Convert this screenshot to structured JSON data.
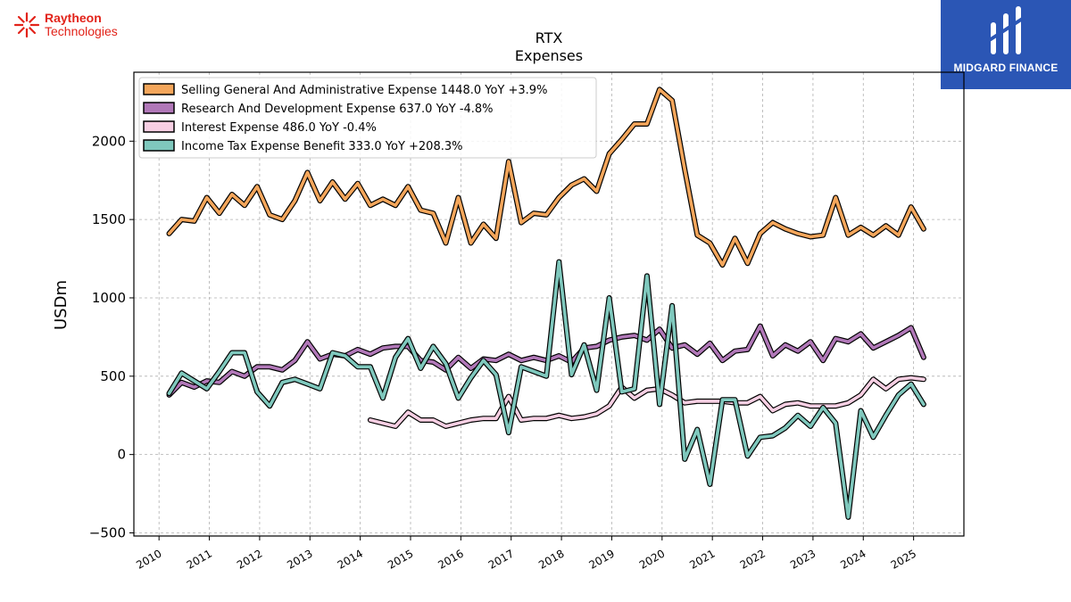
{
  "logos": {
    "left_line1": "Raytheon",
    "left_line2": "Technologies",
    "right_brand": "MIDGARD FINANCE"
  },
  "chart_data": {
    "type": "line",
    "title": "RTX",
    "subtitle": "Expenses",
    "xlabel": "",
    "ylabel": "USDm",
    "xlim": [
      2009.5,
      2026.0
    ],
    "ylim": [
      -520,
      2440
    ],
    "x_ticks": [
      "2010",
      "2011",
      "2012",
      "2013",
      "2014",
      "2015",
      "2016",
      "2017",
      "2018",
      "2019",
      "2020",
      "2021",
      "2022",
      "2023",
      "2024",
      "2025"
    ],
    "y_ticks": [
      -500,
      0,
      500,
      1000,
      1500,
      2000
    ],
    "y_tick_labels": [
      "−500",
      "0",
      "500",
      "1000",
      "1500",
      "2000"
    ],
    "grid": true,
    "legend_position": "top-left",
    "series": [
      {
        "name": "Selling General And Administrative Expense",
        "legend": "Selling General And Administrative Expense  1448.0 YoY +3.9%",
        "color": "#f4a65b",
        "x": [
          2010.2,
          2010.45,
          2010.7,
          2010.95,
          2011.2,
          2011.45,
          2011.7,
          2011.95,
          2012.2,
          2012.45,
          2012.7,
          2012.95,
          2013.2,
          2013.45,
          2013.7,
          2013.95,
          2014.2,
          2014.45,
          2014.7,
          2014.95,
          2015.2,
          2015.45,
          2015.7,
          2015.95,
          2016.2,
          2016.45,
          2016.7,
          2016.95,
          2017.2,
          2017.45,
          2017.7,
          2017.95,
          2018.2,
          2018.45,
          2018.7,
          2018.95,
          2019.2,
          2019.45,
          2019.7,
          2019.95,
          2020.2,
          2020.45,
          2020.7,
          2020.95,
          2021.2,
          2021.45,
          2021.7,
          2021.95,
          2022.2,
          2022.45,
          2022.7,
          2022.95,
          2023.2,
          2023.45,
          2023.7,
          2023.95,
          2024.2,
          2024.45,
          2024.7,
          2024.95,
          2025.2
        ],
        "values": [
          1410,
          1500,
          1490,
          1640,
          1540,
          1660,
          1590,
          1710,
          1530,
          1500,
          1620,
          1800,
          1620,
          1740,
          1630,
          1730,
          1590,
          1630,
          1590,
          1710,
          1560,
          1540,
          1350,
          1640,
          1350,
          1470,
          1380,
          1870,
          1480,
          1540,
          1530,
          1640,
          1720,
          1760,
          1680,
          1920,
          2010,
          2110,
          2110,
          2330,
          2260,
          1820,
          1400,
          1350,
          1210,
          1380,
          1220,
          1410,
          1480,
          1440,
          1410,
          1390,
          1400,
          1640,
          1400,
          1450,
          1400,
          1460,
          1400,
          1580,
          1440
        ]
      },
      {
        "name": "Research And Development Expense",
        "legend": "Research And Development Expense  637.0 YoY -4.8%",
        "color": "#b178b8",
        "x": [
          2010.2,
          2010.45,
          2010.7,
          2010.95,
          2011.2,
          2011.45,
          2011.7,
          2011.95,
          2012.2,
          2012.45,
          2012.7,
          2012.95,
          2013.2,
          2013.45,
          2013.7,
          2013.95,
          2014.2,
          2014.45,
          2014.7,
          2014.95,
          2015.2,
          2015.45,
          2015.7,
          2015.95,
          2016.2,
          2016.45,
          2016.7,
          2016.95,
          2017.2,
          2017.45,
          2017.7,
          2017.95,
          2018.2,
          2018.45,
          2018.7,
          2018.95,
          2019.2,
          2019.45,
          2019.7,
          2019.95,
          2020.2,
          2020.45,
          2020.7,
          2020.95,
          2021.2,
          2021.45,
          2021.7,
          2021.95,
          2022.2,
          2022.45,
          2022.7,
          2022.95,
          2023.2,
          2023.45,
          2023.7,
          2023.95,
          2024.2,
          2024.45,
          2024.7,
          2024.95,
          2025.2
        ],
        "values": [
          380,
          460,
          430,
          470,
          460,
          530,
          500,
          560,
          560,
          540,
          600,
          720,
          610,
          640,
          630,
          670,
          640,
          680,
          690,
          690,
          600,
          590,
          540,
          620,
          550,
          610,
          600,
          640,
          600,
          620,
          600,
          630,
          590,
          680,
          690,
          730,
          750,
          760,
          730,
          800,
          680,
          700,
          640,
          710,
          600,
          660,
          670,
          820,
          630,
          700,
          660,
          720,
          600,
          740,
          720,
          770,
          680,
          720,
          760,
          810,
          620
        ]
      },
      {
        "name": "Interest Expense",
        "legend": "Interest Expense  486.0 YoY -0.4%",
        "color": "#f7cfe3",
        "x": [
          2014.2,
          2014.45,
          2014.7,
          2014.95,
          2015.2,
          2015.45,
          2015.7,
          2015.95,
          2016.2,
          2016.45,
          2016.7,
          2016.95,
          2017.2,
          2017.45,
          2017.7,
          2017.95,
          2018.2,
          2018.45,
          2018.7,
          2018.95,
          2019.2,
          2019.45,
          2019.7,
          2019.95,
          2020.2,
          2020.45,
          2020.7,
          2020.95,
          2021.2,
          2021.45,
          2021.7,
          2021.95,
          2022.2,
          2022.45,
          2022.7,
          2022.95,
          2023.2,
          2023.45,
          2023.7,
          2023.95,
          2024.2,
          2024.45,
          2024.7,
          2024.95,
          2025.2
        ],
        "values": [
          220,
          200,
          180,
          270,
          220,
          220,
          180,
          200,
          220,
          230,
          230,
          370,
          220,
          230,
          230,
          250,
          230,
          240,
          260,
          310,
          430,
          360,
          410,
          420,
          380,
          330,
          340,
          340,
          340,
          330,
          330,
          370,
          280,
          320,
          330,
          310,
          310,
          310,
          330,
          380,
          480,
          420,
          480,
          490,
          480
        ]
      },
      {
        "name": "Income Tax Expense Benefit",
        "legend": "Income Tax Expense Benefit  333.0 YoY +208.3%",
        "color": "#7fc8bd",
        "x": [
          2010.2,
          2010.45,
          2010.7,
          2010.95,
          2011.2,
          2011.45,
          2011.7,
          2011.95,
          2012.2,
          2012.45,
          2012.7,
          2012.95,
          2013.2,
          2013.45,
          2013.7,
          2013.95,
          2014.2,
          2014.45,
          2014.7,
          2014.95,
          2015.2,
          2015.45,
          2015.7,
          2015.95,
          2016.2,
          2016.45,
          2016.7,
          2016.95,
          2017.2,
          2017.45,
          2017.7,
          2017.95,
          2018.2,
          2018.45,
          2018.7,
          2018.95,
          2019.2,
          2019.45,
          2019.7,
          2019.95,
          2020.2,
          2020.45,
          2020.7,
          2020.95,
          2021.2,
          2021.45,
          2021.7,
          2021.95,
          2022.2,
          2022.45,
          2022.7,
          2022.95,
          2023.2,
          2023.45,
          2023.7,
          2023.95,
          2024.2,
          2024.45,
          2024.7,
          2024.95,
          2025.2
        ],
        "values": [
          390,
          520,
          470,
          420,
          530,
          650,
          650,
          400,
          310,
          460,
          480,
          450,
          420,
          650,
          630,
          560,
          560,
          360,
          620,
          740,
          550,
          690,
          580,
          360,
          490,
          600,
          510,
          140,
          560,
          530,
          500,
          1230,
          510,
          700,
          410,
          1000,
          400,
          420,
          1140,
          320,
          950,
          -30,
          160,
          -190,
          350,
          350,
          -10,
          110,
          120,
          170,
          250,
          180,
          300,
          200,
          -400,
          280,
          110,
          250,
          380,
          450,
          320
        ]
      }
    ]
  }
}
